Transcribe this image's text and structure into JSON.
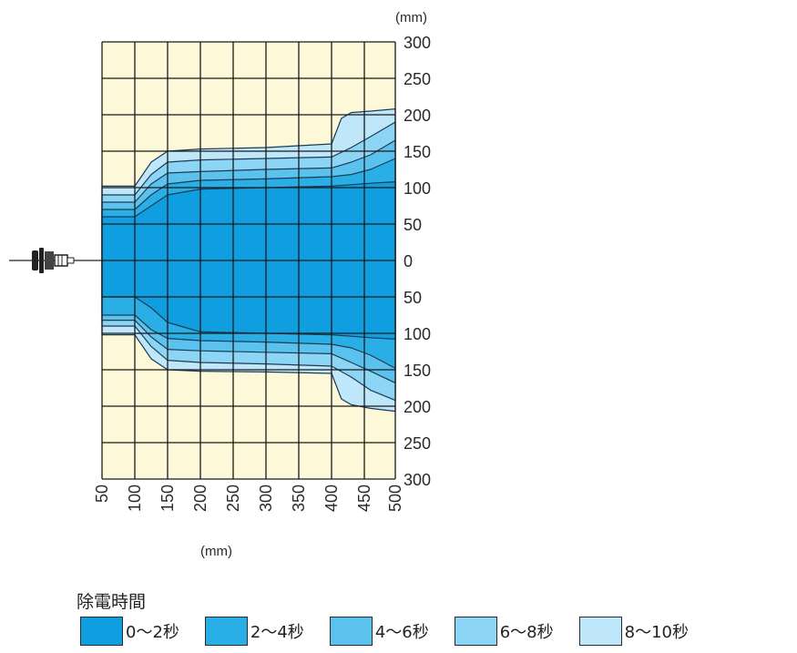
{
  "chart_data": {
    "type": "area",
    "title": "",
    "x_unit": "(mm)",
    "y_unit": "(mm)",
    "x_ticks": [
      "50",
      "100",
      "150",
      "200",
      "250",
      "300",
      "350",
      "400",
      "450",
      "500"
    ],
    "y_ticks": [
      "300",
      "250",
      "200",
      "150",
      "100",
      "50",
      "0",
      "50",
      "100",
      "150",
      "200",
      "250",
      "300"
    ],
    "xlim": [
      50,
      500
    ],
    "ylim": [
      -300,
      300
    ],
    "grid": true,
    "legend_title": "除電時間",
    "legend_position": "bottom",
    "series": [
      {
        "name": "0〜2秒",
        "color": "#0f9ee0",
        "x": [
          50,
          100,
          125,
          150,
          200,
          300,
          400,
          430,
          460,
          500
        ],
        "upper": [
          60,
          60,
          75,
          90,
          98,
          100,
          102,
          104,
          106,
          108
        ],
        "lower": [
          -50,
          -50,
          -65,
          -85,
          -98,
          -100,
          -102,
          -104,
          -106,
          -108
        ]
      },
      {
        "name": "2〜4秒",
        "color": "#2aaee6",
        "x": [
          50,
          100,
          125,
          150,
          200,
          300,
          400,
          430,
          460,
          500
        ],
        "upper": [
          70,
          70,
          90,
          105,
          110,
          112,
          115,
          118,
          125,
          140
        ],
        "lower": [
          -75,
          -75,
          -95,
          -107,
          -110,
          -112,
          -115,
          -120,
          -130,
          -148
        ]
      },
      {
        "name": "4〜6秒",
        "color": "#5bc2ee",
        "x": [
          50,
          100,
          125,
          150,
          200,
          300,
          400,
          430,
          460,
          500
        ],
        "upper": [
          80,
          80,
          105,
          120,
          122,
          125,
          127,
          135,
          145,
          165
        ],
        "lower": [
          -82,
          -82,
          -105,
          -122,
          -124,
          -126,
          -128,
          -140,
          -152,
          -168
        ]
      },
      {
        "name": "6〜8秒",
        "color": "#8dd5f4",
        "x": [
          50,
          100,
          125,
          150,
          200,
          300,
          400,
          430,
          460,
          500
        ],
        "upper": [
          90,
          90,
          118,
          135,
          138,
          140,
          142,
          155,
          170,
          190
        ],
        "lower": [
          -90,
          -90,
          -118,
          -137,
          -140,
          -142,
          -145,
          -160,
          -178,
          -192
        ]
      },
      {
        "name": "8〜10秒",
        "color": "#bfe7f9",
        "x": [
          50,
          100,
          125,
          150,
          200,
          300,
          400,
          415,
          430,
          460,
          500
        ],
        "upper": [
          102,
          102,
          135,
          150,
          153,
          155,
          160,
          195,
          203,
          205,
          208
        ],
        "lower": [
          -102,
          -102,
          -135,
          -150,
          -152,
          -153,
          -155,
          -190,
          -198,
          -203,
          -207
        ]
      }
    ],
    "background_color": "#fdf8d8"
  },
  "device": {
    "icon": "ionizer-nozzle-icon"
  }
}
